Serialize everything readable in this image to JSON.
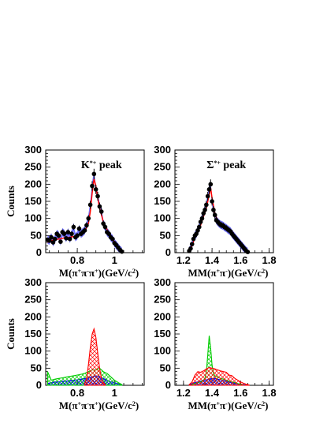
{
  "chart_data": [
    {
      "type": "scatter",
      "panel": "top-left",
      "ylabel": "Counts",
      "xlabel_parts": [
        "M(",
        "π",
        "+",
        "π",
        "-",
        "π",
        "+",
        ")(GeV/c",
        "2",
        ")"
      ],
      "annotation_parts": [
        "K",
        "*+",
        " peak"
      ],
      "xlim": [
        0.63,
        1.16
      ],
      "ylim": [
        0,
        300
      ],
      "xticks": [
        0.8,
        1.0
      ],
      "xtick_labels": [
        "0.8",
        "1"
      ],
      "yticks": [
        0,
        50,
        100,
        150,
        200,
        250,
        300
      ],
      "ytick_labels": [
        "0",
        "50",
        "100",
        "150",
        "200",
        "250",
        "300"
      ],
      "colors": {
        "data": "#000000",
        "fit": "#ff0000",
        "band": "#0000ff"
      },
      "series": [
        {
          "role": "data",
          "x": [
            0.64,
            0.65,
            0.66,
            0.67,
            0.68,
            0.69,
            0.7,
            0.71,
            0.72,
            0.73,
            0.74,
            0.75,
            0.76,
            0.77,
            0.78,
            0.79,
            0.8,
            0.81,
            0.82,
            0.83,
            0.84,
            0.85,
            0.86,
            0.87,
            0.88,
            0.89,
            0.9,
            0.91,
            0.92,
            0.93,
            0.94,
            0.95,
            0.96,
            0.97,
            0.98,
            0.99,
            1.0,
            1.01,
            1.02,
            1.03,
            1.04
          ],
          "y": [
            38,
            35,
            45,
            30,
            40,
            55,
            50,
            32,
            60,
            55,
            42,
            60,
            40,
            55,
            75,
            45,
            50,
            70,
            55,
            60,
            65,
            80,
            100,
            140,
            195,
            230,
            185,
            165,
            135,
            120,
            85,
            75,
            60,
            55,
            45,
            40,
            28,
            22,
            15,
            8,
            3
          ]
        },
        {
          "role": "fit",
          "x": [
            0.64,
            0.66,
            0.68,
            0.7,
            0.72,
            0.74,
            0.76,
            0.78,
            0.8,
            0.82,
            0.84,
            0.86,
            0.87,
            0.88,
            0.89,
            0.9,
            0.91,
            0.92,
            0.93,
            0.94,
            0.96,
            0.98,
            1.0,
            1.02,
            1.04
          ],
          "y": [
            30,
            35,
            38,
            40,
            42,
            44,
            45,
            47,
            50,
            55,
            62,
            85,
            120,
            175,
            215,
            195,
            160,
            130,
            110,
            90,
            68,
            50,
            32,
            15,
            3
          ]
        }
      ]
    },
    {
      "type": "scatter",
      "panel": "top-right",
      "xlabel_parts": [
        "MM(",
        "π",
        "+",
        "π",
        "-",
        ")(GeV/c",
        "2",
        ")"
      ],
      "annotation_parts": [
        "Σ",
        "*+",
        " peak"
      ],
      "xlim": [
        1.14,
        1.83
      ],
      "ylim": [
        0,
        300
      ],
      "xticks": [
        1.2,
        1.4,
        1.6,
        1.8
      ],
      "xtick_labels": [
        "1.2",
        "1.4",
        "1.6",
        "1.8"
      ],
      "yticks": [
        0,
        50,
        100,
        150,
        200,
        250,
        300
      ],
      "ytick_labels": [
        "0",
        "50",
        "100",
        "150",
        "200",
        "250",
        "300"
      ],
      "colors": {
        "data": "#000000",
        "fit": "#ff0000",
        "band": "#0000ff"
      },
      "series": [
        {
          "role": "data",
          "x": [
            1.24,
            1.25,
            1.26,
            1.27,
            1.28,
            1.29,
            1.3,
            1.31,
            1.32,
            1.33,
            1.34,
            1.35,
            1.36,
            1.37,
            1.38,
            1.39,
            1.4,
            1.41,
            1.42,
            1.43,
            1.44,
            1.45,
            1.46,
            1.47,
            1.48,
            1.49,
            1.5,
            1.51,
            1.52,
            1.53,
            1.54,
            1.55,
            1.56,
            1.57,
            1.58,
            1.59,
            1.6,
            1.61,
            1.62,
            1.63,
            1.64,
            1.65
          ],
          "y": [
            5,
            12,
            25,
            40,
            50,
            55,
            65,
            75,
            90,
            100,
            115,
            125,
            140,
            165,
            185,
            200,
            150,
            125,
            110,
            95,
            90,
            85,
            82,
            80,
            78,
            74,
            72,
            68,
            65,
            62,
            55,
            50,
            45,
            40,
            35,
            30,
            25,
            20,
            15,
            10,
            5,
            2
          ]
        },
        {
          "role": "fit",
          "x": [
            1.24,
            1.26,
            1.28,
            1.3,
            1.32,
            1.34,
            1.36,
            1.38,
            1.39,
            1.4,
            1.42,
            1.44,
            1.46,
            1.48,
            1.5,
            1.52,
            1.54,
            1.56,
            1.58,
            1.6,
            1.62,
            1.64,
            1.66
          ],
          "y": [
            5,
            20,
            45,
            60,
            80,
            105,
            130,
            170,
            190,
            160,
            115,
            92,
            85,
            80,
            75,
            70,
            62,
            50,
            40,
            30,
            20,
            10,
            2
          ]
        }
      ]
    },
    {
      "type": "area",
      "panel": "bottom-left",
      "ylabel": "Counts",
      "xlabel_parts": [
        "M(",
        "π",
        "+",
        "π",
        "-",
        "π",
        "+",
        ")(GeV/c",
        "2",
        ")"
      ],
      "xlim": [
        0.63,
        1.16
      ],
      "ylim": [
        0,
        300
      ],
      "xticks": [
        0.8,
        1.0
      ],
      "xtick_labels": [
        "0.8",
        "1"
      ],
      "yticks": [
        0,
        50,
        100,
        150,
        200,
        250,
        300
      ],
      "ytick_labels": [
        "0",
        "50",
        "100",
        "150",
        "200",
        "250",
        "300"
      ],
      "colors": {
        "red": "#ff0000",
        "green": "#00cc00",
        "blue": "#0000ff"
      },
      "series": [
        {
          "role": "red",
          "x": [
            0.84,
            0.85,
            0.86,
            0.87,
            0.88,
            0.89,
            0.9,
            0.91,
            0.92,
            0.93,
            0.94,
            0.95
          ],
          "y": [
            5,
            20,
            60,
            110,
            150,
            165,
            140,
            95,
            50,
            20,
            8,
            2
          ]
        },
        {
          "role": "green",
          "x": [
            0.64,
            0.66,
            0.68,
            0.7,
            0.72,
            0.74,
            0.76,
            0.78,
            0.8,
            0.82,
            0.84,
            0.86,
            0.88,
            0.9,
            0.92,
            0.94,
            0.96,
            0.98,
            1.0,
            1.02,
            1.04
          ],
          "y": [
            40,
            15,
            18,
            20,
            22,
            24,
            26,
            28,
            30,
            32,
            35,
            40,
            45,
            45,
            50,
            40,
            35,
            25,
            15,
            8,
            2
          ]
        },
        {
          "role": "blue",
          "x": [
            0.64,
            0.66,
            0.68,
            0.7,
            0.72,
            0.74,
            0.76,
            0.78,
            0.8,
            0.82,
            0.84,
            0.86,
            0.88,
            0.9,
            0.92,
            0.94,
            0.96,
            0.98,
            1.0,
            1.02,
            1.04
          ],
          "y": [
            5,
            8,
            10,
            10,
            12,
            12,
            14,
            15,
            16,
            18,
            20,
            22,
            25,
            28,
            25,
            20,
            15,
            10,
            8,
            4,
            1
          ]
        }
      ]
    },
    {
      "type": "area",
      "panel": "bottom-right",
      "xlabel_parts": [
        "MM(",
        "π",
        "+",
        "π",
        "-",
        ")(GeV/c",
        "2",
        ")"
      ],
      "xlim": [
        1.14,
        1.83
      ],
      "ylim": [
        0,
        300
      ],
      "xticks": [
        1.2,
        1.4,
        1.6,
        1.8
      ],
      "xtick_labels": [
        "1.2",
        "1.4",
        "1.6",
        "1.8"
      ],
      "yticks": [
        0,
        50,
        100,
        150,
        200,
        250,
        300
      ],
      "ytick_labels": [
        "0",
        "50",
        "100",
        "150",
        "200",
        "250",
        "300"
      ],
      "colors": {
        "red": "#ff0000",
        "green": "#00cc00",
        "blue": "#0000ff"
      },
      "series": [
        {
          "role": "red",
          "x": [
            1.24,
            1.26,
            1.28,
            1.3,
            1.32,
            1.34,
            1.36,
            1.38,
            1.4,
            1.42,
            1.44,
            1.46,
            1.48,
            1.5,
            1.52,
            1.54,
            1.56,
            1.58,
            1.6,
            1.62,
            1.64,
            1.66
          ],
          "y": [
            2,
            10,
            30,
            40,
            38,
            42,
            48,
            52,
            50,
            48,
            45,
            42,
            40,
            38,
            30,
            28,
            20,
            15,
            10,
            6,
            3,
            1
          ]
        },
        {
          "role": "green",
          "x": [
            1.26,
            1.28,
            1.3,
            1.32,
            1.34,
            1.35,
            1.36,
            1.37,
            1.38,
            1.39,
            1.4,
            1.41,
            1.42,
            1.44,
            1.46,
            1.48,
            1.5,
            1.52,
            1.54,
            1.56,
            1.58,
            1.6,
            1.62
          ],
          "y": [
            2,
            5,
            8,
            10,
            15,
            20,
            40,
            90,
            145,
            110,
            60,
            35,
            28,
            24,
            20,
            18,
            15,
            12,
            10,
            8,
            5,
            3,
            1
          ]
        },
        {
          "role": "blue",
          "x": [
            1.24,
            1.26,
            1.28,
            1.3,
            1.32,
            1.34,
            1.36,
            1.38,
            1.4,
            1.42,
            1.44,
            1.46,
            1.48,
            1.5,
            1.52,
            1.54,
            1.56,
            1.58,
            1.6,
            1.62,
            1.64
          ],
          "y": [
            2,
            5,
            8,
            10,
            12,
            14,
            16,
            18,
            20,
            20,
            18,
            16,
            14,
            12,
            10,
            8,
            6,
            4,
            3,
            2,
            1
          ]
        }
      ]
    }
  ]
}
